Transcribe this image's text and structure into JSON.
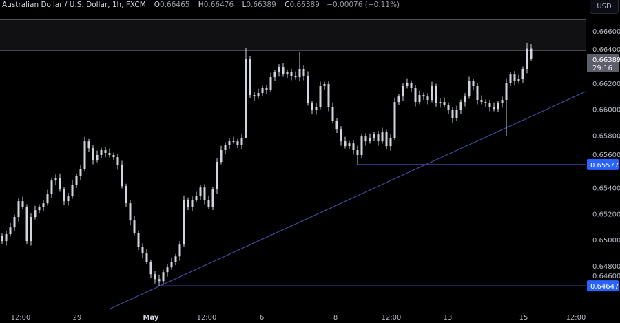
{
  "header": {
    "title": "Australian Dollar / U.S. Dollar, 1h, FXCM",
    "o_label": "O",
    "o": "0.66465",
    "h_label": "H",
    "h": "0.66476",
    "l_label": "L",
    "l": "0.66389",
    "c_label": "C",
    "c": "0.66389",
    "change": "−0.00076 (−0.11%)"
  },
  "currency_button": "USD",
  "chart_data": {
    "type": "candlestick",
    "interval": "1h",
    "ylim": [
      0.6455,
      0.6673
    ],
    "y_ticks": [
      "0.66600",
      "0.66400",
      "0.66200",
      "0.66000",
      "0.65800",
      "0.65600",
      "0.65400",
      "0.65200",
      "0.65000",
      "0.64800",
      "0.64600"
    ],
    "x_ticks": [
      "12:00",
      "29",
      "May",
      "12:00",
      "6",
      "8",
      "12:00",
      "13",
      "15",
      "12:00"
    ],
    "close": [
      0.6499,
      0.65043,
      0.65095,
      0.65175,
      0.65296,
      0.65254,
      0.6499,
      0.65175,
      0.65227,
      0.65254,
      0.6528,
      0.65349,
      0.65454,
      0.65475,
      0.65386,
      0.65296,
      0.65333,
      0.65423,
      0.65491,
      0.65544,
      0.65755,
      0.65702,
      0.65613,
      0.6565,
      0.65687,
      0.65666,
      0.6565,
      0.65634,
      0.65571,
      0.65412,
      0.6528,
      0.65148,
      0.65053,
      0.64947,
      0.64895,
      0.64831,
      0.64736,
      0.64699,
      0.64683,
      0.64752,
      0.64789,
      0.64831,
      0.64873,
      0.64963,
      0.65306,
      0.65254,
      0.65306,
      0.65333,
      0.65401,
      0.65306,
      0.65254,
      0.65386,
      0.65597,
      0.65687,
      0.65729,
      0.65755,
      0.65755,
      0.65729,
      0.65782,
      0.66389,
      0.66109,
      0.66098,
      0.66125,
      0.66162,
      0.66151,
      0.66246,
      0.66284,
      0.6632,
      0.66267,
      0.66284,
      0.66257,
      0.66246,
      0.6631,
      0.66257,
      0.66046,
      0.65993,
      0.66019,
      0.66178,
      0.66194,
      0.66019,
      0.65914,
      0.65845,
      0.65755,
      0.65718,
      0.65739,
      0.65687,
      0.6565,
      0.65792,
      0.65755,
      0.65782,
      0.65808,
      0.65755,
      0.65824,
      0.65718,
      0.65782,
      0.66056,
      0.66098,
      0.66178,
      0.66204,
      0.66162,
      0.66056,
      0.66109,
      0.66098,
      0.66072,
      0.66178,
      0.66046,
      0.66056,
      0.66035,
      0.65993,
      0.6593,
      0.65993,
      0.66056,
      0.66098,
      0.66215,
      0.66178,
      0.66072,
      0.66056,
      0.66046,
      0.66019,
      0.66003,
      0.66046,
      0.66072,
      0.66204,
      0.66267,
      0.66215,
      0.66231,
      0.6631,
      0.66465,
      0.66389
    ],
    "wicks": [
      {
        "candle": 59,
        "high": 0.66468,
        "low": 0.65824
      },
      {
        "candle": 72,
        "high": 0.66441
      },
      {
        "candle": 38,
        "low": 0.64647
      },
      {
        "candle": 86,
        "low": 0.65577
      },
      {
        "candle": 122,
        "low": 0.65798
      },
      {
        "candle": 127,
        "high": 0.66511
      }
    ],
    "resistance_zone": [
      0.66452,
      0.6669
    ],
    "support_lines": [
      {
        "price": 0.65577,
        "label": "0.65577",
        "from_candle": 86
      },
      {
        "price": 0.64647,
        "label": "0.64647",
        "from_candle": 38
      }
    ],
    "trendline": {
      "start_price": 0.64468,
      "end_price": 0.66136
    },
    "last_price": {
      "label": "0.66389",
      "countdown": "29:16"
    },
    "colors": {
      "candle": "#d1d4dc",
      "lines": "#3f4a9e",
      "label_blue": "#2962ff",
      "last_price_box": "#5d606b",
      "zone": "#111113"
    }
  }
}
